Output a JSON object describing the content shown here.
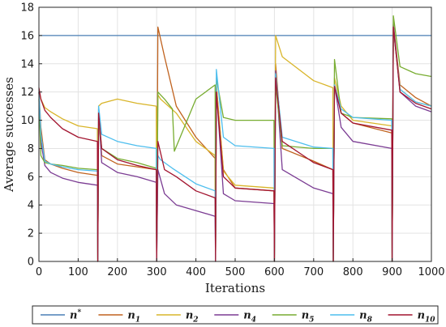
{
  "chart_data": {
    "type": "line",
    "title": "",
    "xlabel": "Iterations",
    "ylabel": "Average successes",
    "xlim": [
      0,
      1000
    ],
    "ylim": [
      0,
      18
    ],
    "xticks": [
      0,
      100,
      200,
      300,
      400,
      500,
      600,
      700,
      800,
      900,
      1000
    ],
    "yticks": [
      0,
      2,
      4,
      6,
      8,
      10,
      12,
      14,
      16,
      18
    ],
    "grid": true,
    "legend_position": "bottom",
    "series": [
      {
        "name": "n*",
        "base": "n",
        "sup": "*",
        "sub": "",
        "color": "#4a7fb5",
        "x": [
          0,
          1000
        ],
        "y": [
          16,
          16
        ]
      },
      {
        "name": "n1",
        "base": "n",
        "sup": "",
        "sub": "1",
        "color": "#c0621e",
        "x": [
          0,
          5,
          15,
          30,
          60,
          100,
          149,
          150,
          152,
          160,
          200,
          250,
          299,
          300,
          303,
          320,
          350,
          400,
          449,
          450,
          452,
          470,
          500,
          599,
          600,
          603,
          620,
          700,
          749,
          750,
          753,
          770,
          800,
          899,
          900,
          903,
          920,
          960,
          1000
        ],
        "y": [
          12,
          9.5,
          7.2,
          6.9,
          6.6,
          6.3,
          6.1,
          0,
          10.5,
          7.5,
          6.9,
          6.7,
          6.5,
          0,
          16.6,
          14.5,
          11,
          8.8,
          7.3,
          0,
          12.5,
          6.5,
          5.2,
          5.0,
          0,
          14,
          8,
          7.1,
          6.5,
          0,
          12.5,
          10.5,
          9.8,
          9.1,
          0,
          16.8,
          12.5,
          11.6,
          11.0
        ]
      },
      {
        "name": "n2",
        "base": "n",
        "sup": "",
        "sub": "2",
        "color": "#d9b52a",
        "x": [
          0,
          5,
          15,
          30,
          60,
          100,
          149,
          150,
          152,
          160,
          200,
          250,
          299,
          300,
          303,
          310,
          350,
          400,
          449,
          450,
          452,
          470,
          500,
          599,
          600,
          603,
          620,
          700,
          749,
          750,
          753,
          770,
          800,
          899,
          900,
          903,
          920,
          960,
          1000
        ],
        "y": [
          12,
          11.5,
          10.9,
          10.6,
          10.1,
          9.6,
          9.4,
          0,
          11,
          11.2,
          11.5,
          11.2,
          11.0,
          0,
          11.8,
          11.5,
          10.5,
          8.5,
          7.5,
          0,
          12.5,
          6.4,
          5.4,
          5.2,
          0,
          16,
          14.5,
          12.8,
          12.3,
          0,
          13,
          11,
          10,
          9.6,
          0,
          16.5,
          12.2,
          11.3,
          11.0
        ]
      },
      {
        "name": "n4",
        "base": "n",
        "sup": "",
        "sub": "4",
        "color": "#7b3c93",
        "x": [
          0,
          5,
          15,
          30,
          60,
          100,
          149,
          150,
          152,
          160,
          200,
          250,
          299,
          300,
          303,
          320,
          350,
          400,
          449,
          450,
          452,
          470,
          500,
          599,
          600,
          603,
          620,
          700,
          749,
          750,
          753,
          770,
          800,
          899,
          900,
          903,
          920,
          960,
          1000
        ],
        "y": [
          12,
          8.5,
          6.8,
          6.3,
          5.9,
          5.6,
          5.4,
          0,
          10.8,
          7.0,
          6.3,
          6.0,
          5.6,
          0,
          6.5,
          4.8,
          4.0,
          3.6,
          3.2,
          0,
          12.2,
          4.8,
          4.3,
          4.1,
          0,
          13.5,
          6.5,
          5.2,
          4.8,
          0,
          12.5,
          9.5,
          8.5,
          8.0,
          0,
          16.8,
          12,
          11,
          10.6
        ]
      },
      {
        "name": "n5",
        "base": "n",
        "sup": "",
        "sub": "5",
        "color": "#77ac30",
        "x": [
          0,
          5,
          15,
          30,
          60,
          100,
          149,
          150,
          152,
          160,
          200,
          250,
          299,
          300,
          303,
          320,
          340,
          345,
          360,
          400,
          449,
          450,
          452,
          470,
          500,
          599,
          600,
          603,
          620,
          700,
          749,
          750,
          753,
          770,
          800,
          899,
          900,
          903,
          920,
          960,
          1000
        ],
        "y": [
          11.5,
          7.5,
          7.0,
          6.9,
          6.8,
          6.6,
          6.5,
          0,
          10.2,
          8.0,
          7.3,
          7.0,
          6.6,
          0,
          12.0,
          11.5,
          10.8,
          7.8,
          8.8,
          11.5,
          12.5,
          0,
          13.0,
          10.2,
          10.0,
          10.0,
          0,
          12.5,
          8.2,
          8.0,
          8.0,
          0,
          14.3,
          10.5,
          10.2,
          10.1,
          0,
          17.4,
          13.8,
          13.3,
          13.1
        ]
      },
      {
        "name": "n8",
        "base": "n",
        "sup": "",
        "sub": "8",
        "color": "#4dbeee",
        "x": [
          0,
          5,
          15,
          30,
          60,
          100,
          149,
          150,
          152,
          160,
          200,
          250,
          299,
          300,
          303,
          310,
          340,
          400,
          449,
          450,
          452,
          470,
          500,
          599,
          600,
          603,
          620,
          700,
          749,
          750,
          753,
          770,
          800,
          899,
          900,
          903,
          920,
          960,
          1000
        ],
        "y": [
          12,
          9,
          7.1,
          6.9,
          6.7,
          6.5,
          6.4,
          0,
          11,
          9.0,
          8.5,
          8.2,
          8.0,
          0,
          7.5,
          7.2,
          6.6,
          5.5,
          5.0,
          0,
          13.6,
          8.8,
          8.2,
          8.0,
          0,
          13.3,
          8.8,
          8.1,
          8.0,
          0,
          12.5,
          10.8,
          10.2,
          10.0,
          0,
          16.5,
          12.2,
          11.3,
          11.0
        ]
      },
      {
        "name": "n10",
        "base": "n",
        "sup": "",
        "sub": "10",
        "color": "#a2142f",
        "x": [
          0,
          5,
          15,
          30,
          60,
          100,
          149,
          150,
          152,
          160,
          200,
          250,
          299,
          300,
          303,
          320,
          350,
          400,
          449,
          450,
          452,
          470,
          500,
          599,
          600,
          603,
          620,
          700,
          749,
          750,
          753,
          770,
          800,
          899,
          900,
          903,
          920,
          960,
          1000
        ],
        "y": [
          12.3,
          11.5,
          10.7,
          10.2,
          9.4,
          8.8,
          8.5,
          0,
          10.5,
          8.0,
          7.2,
          6.8,
          6.5,
          0,
          8.5,
          6.5,
          6.0,
          5.0,
          4.5,
          0,
          12.0,
          6.0,
          5.2,
          5.0,
          0,
          13.0,
          8.5,
          7.0,
          6.5,
          0,
          12.4,
          10.5,
          9.8,
          9.3,
          0,
          16.6,
          12.0,
          11.2,
          10.8
        ]
      }
    ]
  }
}
